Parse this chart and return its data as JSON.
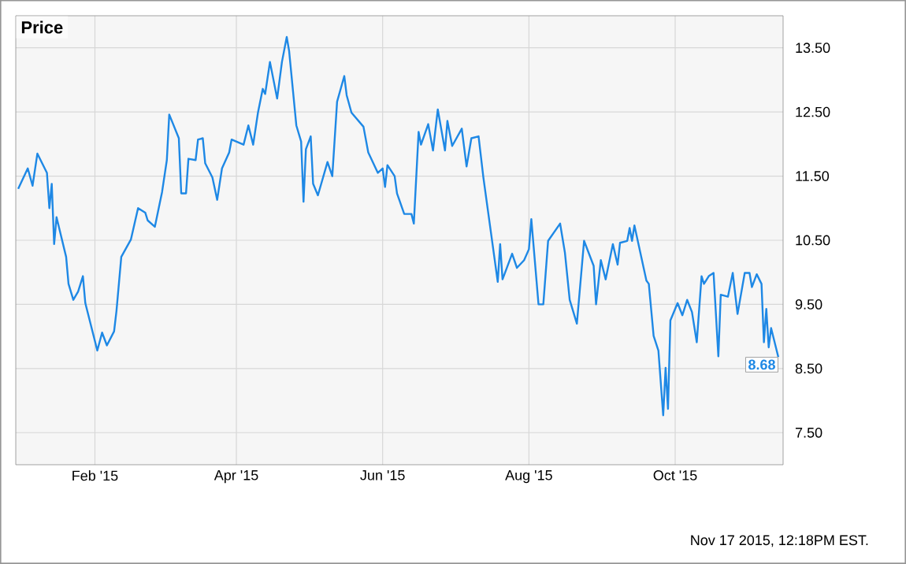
{
  "chart_data": {
    "type": "line",
    "title": "Price",
    "x": [
      "2014-12-31",
      "2015-01-04",
      "2015-01-06",
      "2015-01-08",
      "2015-01-12",
      "2015-01-13",
      "2015-01-14",
      "2015-01-15",
      "2015-01-16",
      "2015-01-20",
      "2015-01-21",
      "2015-01-23",
      "2015-01-25",
      "2015-01-27",
      "2015-01-28",
      "2015-02-02",
      "2015-02-04",
      "2015-02-06",
      "2015-02-09",
      "2015-02-10",
      "2015-02-12",
      "2015-02-16",
      "2015-02-19",
      "2015-02-22",
      "2015-02-23",
      "2015-02-26",
      "2015-03-01",
      "2015-03-03",
      "2015-03-04",
      "2015-03-08",
      "2015-03-09",
      "2015-03-11",
      "2015-03-12",
      "2015-03-15",
      "2015-03-16",
      "2015-03-18",
      "2015-03-19",
      "2015-03-22",
      "2015-03-24",
      "2015-03-26",
      "2015-03-29",
      "2015-03-30",
      "2015-04-04",
      "2015-04-06",
      "2015-04-08",
      "2015-04-10",
      "2015-04-12",
      "2015-04-13",
      "2015-04-15",
      "2015-04-18",
      "2015-04-20",
      "2015-04-22",
      "2015-04-23",
      "2015-04-26",
      "2015-04-28",
      "2015-04-29",
      "2015-04-30",
      "2015-05-02",
      "2015-05-03",
      "2015-05-05",
      "2015-05-09",
      "2015-05-11",
      "2015-05-13",
      "2015-05-16",
      "2015-05-17",
      "2015-05-19",
      "2015-05-24",
      "2015-05-26",
      "2015-05-30",
      "2015-06-01",
      "2015-06-02",
      "2015-06-03",
      "2015-06-06",
      "2015-06-07",
      "2015-06-10",
      "2015-06-13",
      "2015-06-14",
      "2015-06-16",
      "2015-06-17",
      "2015-06-20",
      "2015-06-22",
      "2015-06-24",
      "2015-06-27",
      "2015-06-28",
      "2015-06-30",
      "2015-07-04",
      "2015-07-06",
      "2015-07-08",
      "2015-07-11",
      "2015-07-13",
      "2015-07-19",
      "2015-07-20",
      "2015-07-21",
      "2015-07-25",
      "2015-07-27",
      "2015-07-30",
      "2015-08-01",
      "2015-08-02",
      "2015-08-05",
      "2015-08-07",
      "2015-08-09",
      "2015-08-14",
      "2015-08-16",
      "2015-08-18",
      "2015-08-21",
      "2015-08-24",
      "2015-08-28",
      "2015-08-29",
      "2015-08-31",
      "2015-09-02",
      "2015-09-05",
      "2015-09-07",
      "2015-09-08",
      "2015-09-11",
      "2015-09-12",
      "2015-09-13",
      "2015-09-14",
      "2015-09-19",
      "2015-09-20",
      "2015-09-22",
      "2015-09-24",
      "2015-09-26",
      "2015-09-27",
      "2015-09-28",
      "2015-09-29",
      "2015-10-02",
      "2015-10-04",
      "2015-10-06",
      "2015-10-08",
      "2015-10-10",
      "2015-10-12",
      "2015-10-13",
      "2015-10-15",
      "2015-10-17",
      "2015-10-19",
      "2015-10-20",
      "2015-10-23",
      "2015-10-25",
      "2015-10-27",
      "2015-10-30",
      "2015-11-01",
      "2015-11-02",
      "2015-11-04",
      "2015-11-06",
      "2015-11-07",
      "2015-11-08",
      "2015-11-09",
      "2015-11-10",
      "2015-11-13"
    ],
    "series": [
      {
        "color": "#1e88e5",
        "values": [
          11.3,
          11.62,
          11.35,
          11.85,
          11.55,
          11.0,
          11.38,
          10.44,
          10.86,
          10.24,
          9.82,
          9.57,
          9.7,
          9.94,
          9.52,
          8.78,
          9.06,
          8.86,
          9.08,
          9.4,
          10.24,
          10.51,
          11.0,
          10.93,
          10.81,
          10.71,
          11.25,
          11.75,
          12.46,
          12.09,
          11.23,
          11.23,
          11.77,
          11.75,
          12.07,
          12.09,
          11.7,
          11.48,
          11.13,
          11.62,
          11.87,
          12.07,
          11.99,
          12.29,
          11.99,
          12.49,
          12.86,
          12.78,
          13.28,
          12.71,
          13.28,
          13.67,
          13.45,
          12.29,
          12.04,
          11.1,
          11.92,
          12.12,
          11.38,
          11.2,
          11.72,
          11.5,
          12.66,
          13.06,
          12.76,
          12.49,
          12.27,
          11.87,
          11.55,
          11.62,
          11.33,
          11.67,
          11.5,
          11.23,
          10.91,
          10.91,
          10.76,
          12.19,
          11.99,
          12.31,
          11.9,
          12.54,
          11.9,
          12.36,
          11.97,
          12.24,
          11.65,
          12.09,
          12.12,
          11.48,
          9.85,
          10.44,
          9.89,
          10.29,
          10.07,
          10.19,
          10.36,
          10.83,
          9.5,
          9.5,
          10.49,
          10.76,
          10.31,
          9.57,
          9.2,
          10.49,
          10.1,
          9.5,
          10.19,
          9.89,
          10.44,
          10.12,
          10.46,
          10.49,
          10.69,
          10.49,
          10.73,
          9.87,
          9.82,
          9.01,
          8.78,
          7.77,
          8.51,
          7.87,
          9.25,
          9.52,
          9.33,
          9.57,
          9.38,
          8.91,
          9.94,
          9.82,
          9.94,
          9.99,
          8.69,
          9.65,
          9.62,
          9.99,
          9.35,
          9.99,
          9.99,
          9.77,
          9.97,
          9.82,
          8.91,
          9.43,
          8.83,
          9.13,
          8.68
        ]
      }
    ],
    "xlim": [
      "2014-12-30",
      "2015-11-15"
    ],
    "xticks": [
      {
        "value": "2015-02-01",
        "label": "Feb '15"
      },
      {
        "value": "2015-04-01",
        "label": "Apr '15"
      },
      {
        "value": "2015-06-01",
        "label": "Jun '15"
      },
      {
        "value": "2015-08-01",
        "label": "Aug '15"
      },
      {
        "value": "2015-10-01",
        "label": "Oct '15"
      }
    ],
    "ylim": [
      7.0,
      14.0
    ],
    "yticks": [
      {
        "value": 7.5,
        "label": "7.50"
      },
      {
        "value": 8.5,
        "label": "8.50"
      },
      {
        "value": 9.5,
        "label": "9.50"
      },
      {
        "value": 10.5,
        "label": "10.50"
      },
      {
        "value": 11.5,
        "label": "11.50"
      },
      {
        "value": 12.5,
        "label": "12.50"
      },
      {
        "value": 13.5,
        "label": "13.50"
      }
    ],
    "grid": true,
    "annotations": [
      "Nov 17 2015, 12:18PM EST.",
      {
        "text": "8.68",
        "x": "2015-11-13",
        "y": 8.68
      }
    ]
  }
}
